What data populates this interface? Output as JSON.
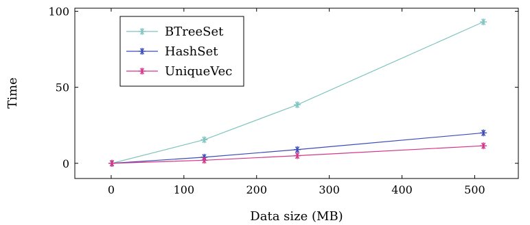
{
  "chart_data": {
    "type": "line",
    "xlabel": "Data size (MB)",
    "ylabel": "Time",
    "xlim": [
      -50,
      560
    ],
    "ylim": [
      -10,
      102
    ],
    "xticks": [
      0,
      100,
      200,
      300,
      400,
      500
    ],
    "yticks": [
      0,
      50,
      100
    ],
    "grid": false,
    "legend_position": "top-left",
    "series": [
      {
        "name": "BTreeSet",
        "color": "#7fc4c0",
        "marker": "asterisk",
        "x": [
          1,
          128,
          256,
          512
        ],
        "y": [
          0,
          15.5,
          38.5,
          93
        ]
      },
      {
        "name": "HashSet",
        "color": "#3a4bb8",
        "marker": "asterisk",
        "x": [
          1,
          128,
          256,
          512
        ],
        "y": [
          0,
          4,
          9,
          20
        ]
      },
      {
        "name": "UniqueVec",
        "color": "#d6338a",
        "marker": "asterisk",
        "x": [
          1,
          128,
          256,
          512
        ],
        "y": [
          0,
          2,
          5,
          11.5
        ]
      }
    ]
  }
}
